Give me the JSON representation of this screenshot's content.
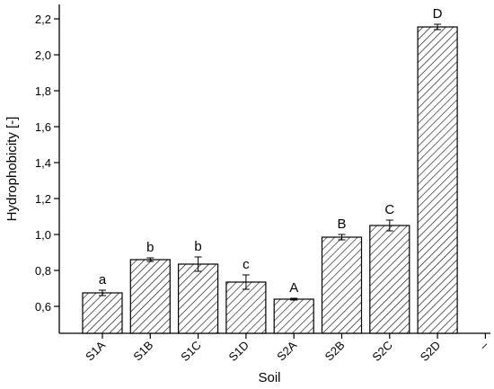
{
  "chart_data": {
    "type": "bar",
    "x_label": "Soil",
    "y_label": "Hydrophobicity [-]",
    "categories": [
      "S1A",
      "S1B",
      "S1C",
      "S1D",
      "S2A",
      "S2B",
      "S2C",
      "S2D",
      "–"
    ],
    "values": [
      0.675,
      0.86,
      0.835,
      0.735,
      0.64,
      0.985,
      1.05,
      2.155,
      null
    ],
    "errors": [
      0.015,
      0.01,
      0.04,
      0.04,
      0.005,
      0.015,
      0.03,
      0.015,
      null
    ],
    "annotations": [
      "a",
      "b",
      "b",
      "c",
      "A",
      "B",
      "C",
      "D",
      null
    ],
    "color": "#000000",
    "ylim": [
      0.45,
      2.28
    ],
    "yticks": [
      {
        "value": 0.6,
        "label": "0,6"
      },
      {
        "value": 0.8,
        "label": "0,8"
      },
      {
        "value": 1.0,
        "label": "1,0"
      },
      {
        "value": 1.2,
        "label": "1,2"
      },
      {
        "value": 1.4,
        "label": "1,4"
      },
      {
        "value": 1.6,
        "label": "1,6"
      },
      {
        "value": 1.8,
        "label": "1,8"
      },
      {
        "value": 2.0,
        "label": "2,0"
      },
      {
        "value": 2.2,
        "label": "2,2"
      }
    ],
    "grid": false
  }
}
